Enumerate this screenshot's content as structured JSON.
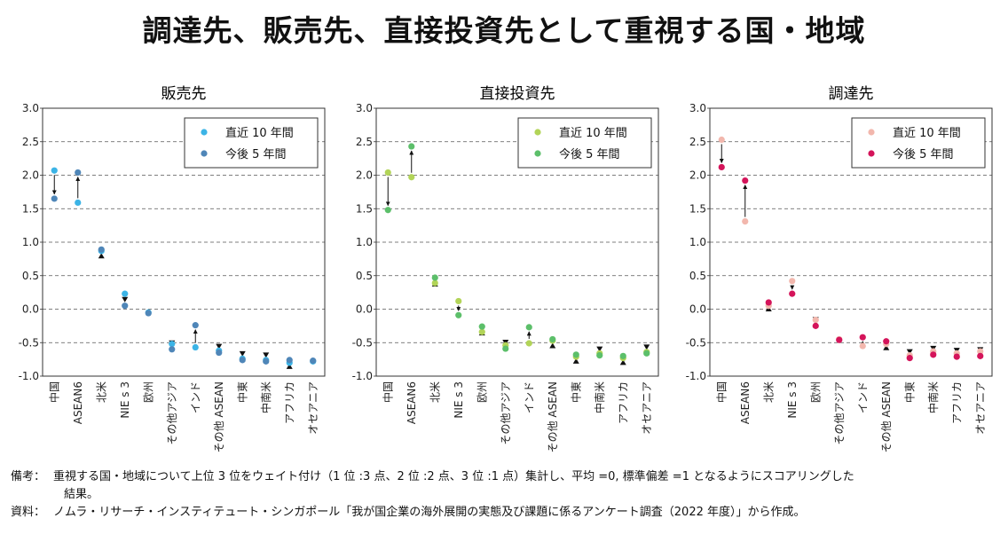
{
  "title": "調達先、販売先、直接投資先として重視する国・地域",
  "legend": {
    "recent": "直近 10 年間",
    "future": "今後 5 年間"
  },
  "notes": {
    "biko_label": "備考：",
    "biko_text": "重視する国・地域について上位 3 位をウェイト付け（1 位 :3 点、2 位 :2 点、3 位 :1 点）集計し、平均 =0, 標準偏差 =1 となるようにスコアリングした",
    "biko_text2": "結果。",
    "shiryo_label": "資料：",
    "shiryo_text": "ノムラ・リサーチ・インスティテュート・シンガポール「我が国企業の海外展開の実態及び課題に係るアンケート調査（2022 年度）」から作成。"
  },
  "chart_data": [
    {
      "type": "scatter",
      "title": "販売先",
      "categories": [
        "中国",
        "ASEAN6",
        "北米",
        "NIE s 3",
        "欧州",
        "その他アジア",
        "インド",
        "その他 ASEAN",
        "中東",
        "中南米",
        "アフリカ",
        "オセアニア"
      ],
      "ylim": [
        -1.0,
        3.0
      ],
      "yticks": [
        "3.0",
        "2.5",
        "2.0",
        "1.5",
        "1.0",
        "0.5",
        "0.0",
        "-0.5",
        "-1.0"
      ],
      "grid": true,
      "legend_position": "top-right",
      "colors": {
        "recent": "#3cb4e6",
        "future": "#4f86b8"
      },
      "series": [
        {
          "name": "直近 10 年間",
          "values": [
            2.07,
            1.59,
            0.87,
            0.23,
            -0.05,
            -0.52,
            -0.57,
            -0.62,
            -0.74,
            -0.76,
            -0.8,
            -0.78
          ]
        },
        {
          "name": "今後 5 年間",
          "values": [
            1.65,
            2.04,
            0.89,
            0.05,
            -0.06,
            -0.6,
            -0.24,
            -0.65,
            -0.76,
            -0.78,
            -0.76,
            -0.77
          ]
        }
      ]
    },
    {
      "type": "scatter",
      "title": "直接投資先",
      "categories": [
        "中国",
        "ASEAN6",
        "北米",
        "NIE s 3",
        "欧州",
        "その他アジア",
        "インド",
        "その他 ASEAN",
        "中東",
        "中南米",
        "アフリカ",
        "オセアニア"
      ],
      "ylim": [
        -1.0,
        3.0
      ],
      "yticks": [
        "3.0",
        "2.5",
        "2.0",
        "1.5",
        "1.0",
        "0.5",
        "0.0",
        "-0.5",
        "-1.0"
      ],
      "grid": true,
      "legend_position": "top-right",
      "colors": {
        "recent": "#b2d458",
        "future": "#5cbf6a"
      },
      "series": [
        {
          "name": "直近 10 年間",
          "values": [
            2.04,
            1.97,
            0.39,
            0.12,
            -0.34,
            -0.54,
            -0.51,
            -0.47,
            -0.71,
            -0.66,
            -0.73,
            -0.64
          ]
        },
        {
          "name": "今後 5 年間",
          "values": [
            1.48,
            2.43,
            0.47,
            -0.09,
            -0.26,
            -0.59,
            -0.27,
            -0.45,
            -0.68,
            -0.69,
            -0.7,
            -0.66
          ]
        }
      ]
    },
    {
      "type": "scatter",
      "title": "調達先",
      "categories": [
        "中国",
        "ASEAN6",
        "北米",
        "NIE s 3",
        "欧州",
        "その他アジア",
        "インド",
        "その他 ASEAN",
        "中東",
        "中南米",
        "アフリカ",
        "オセアニア"
      ],
      "ylim": [
        -1.0,
        3.0
      ],
      "yticks": [
        "3.0",
        "2.5",
        "2.0",
        "1.5",
        "1.0",
        "0.5",
        "0.0",
        "-0.5",
        "-1.0"
      ],
      "grid": true,
      "legend_position": "top-right",
      "colors": {
        "recent": "#f2b7ad",
        "future": "#d4145a"
      },
      "series": [
        {
          "name": "直近 10 年間",
          "values": [
            2.53,
            1.31,
            0.05,
            0.42,
            -0.16,
            -0.45,
            -0.55,
            -0.52,
            -0.69,
            -0.63,
            -0.66,
            -0.63
          ]
        },
        {
          "name": "今後 5 年間",
          "values": [
            2.12,
            1.92,
            0.1,
            0.23,
            -0.25,
            -0.46,
            -0.42,
            -0.48,
            -0.73,
            -0.68,
            -0.71,
            -0.7
          ]
        }
      ]
    }
  ]
}
